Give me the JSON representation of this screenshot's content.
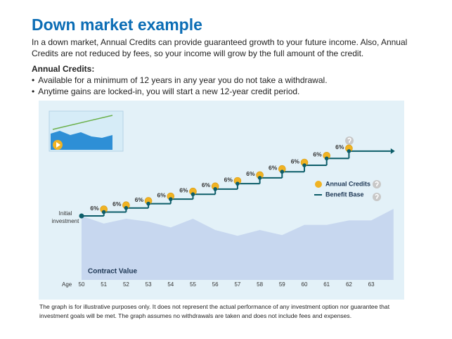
{
  "header": {
    "title": "Down market example",
    "intro": "In a down market, Annual Credits can provide guaranteed growth to your future income. Also, Annual Credits are not reduced by fees, so your income will grow by the full amount of the credit.",
    "subheading": "Annual Credits:",
    "bullets": [
      "Available for a minimum of 12 years in any year you do not take a withdrawal.",
      "Anytime gains are locked-in, you will start a new 12-year credit period."
    ]
  },
  "chart_data": {
    "type": "line",
    "xlabel": "Age",
    "xlim": [
      50,
      64
    ],
    "xticks": [
      50,
      51,
      52,
      53,
      54,
      55,
      56,
      57,
      58,
      59,
      60,
      61,
      62,
      63
    ],
    "ylim": [
      0,
      278
    ],
    "annotation": "Initial investment",
    "series": [
      {
        "name": "Benefit Base",
        "color": "#0c5d69",
        "x": [
          50,
          51,
          52,
          53,
          54,
          55,
          56,
          57,
          58,
          59,
          60,
          61,
          62
        ],
        "values": [
          100,
          106,
          112.4,
          119.1,
          126.2,
          133.8,
          141.9,
          150.4,
          159.4,
          169.0,
          179.1,
          189.8,
          201.2
        ]
      },
      {
        "name": "Contract Value",
        "color": "#c7d7ef",
        "x": [
          50,
          51,
          52,
          53,
          54,
          55,
          56,
          57,
          58,
          59,
          60,
          61,
          62,
          63,
          64
        ],
        "values": [
          100,
          88,
          95.6,
          91,
          82,
          95.6,
          78,
          69,
          78,
          70,
          86,
          86,
          93,
          93,
          111
        ]
      }
    ],
    "credits": {
      "name": "Annual Credits",
      "color": "#f0b323",
      "x": [
        51,
        52,
        53,
        54,
        55,
        56,
        57,
        58,
        59,
        60,
        61,
        62
      ],
      "values": [
        6,
        6,
        6,
        6,
        6,
        6,
        6,
        6,
        6,
        6,
        6,
        6
      ],
      "value_labels": [
        "6%",
        "6%",
        "6%",
        "6%",
        "6%",
        "6%",
        "6%",
        "6%",
        "6%",
        "6%",
        "6%",
        "6%"
      ]
    }
  },
  "footnote": "The graph is for illustrative purposes only. It does not represent the actual performance of any investment option nor guarantee that investment goals will be met. The graph assumes no withdrawals are taken and does not include fees and expenses."
}
